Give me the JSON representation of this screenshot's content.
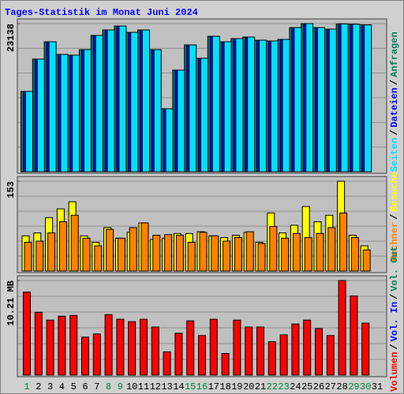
{
  "chart_data": [
    {
      "type": "bar",
      "title": "Tages-Statistik im Monat Juni 2024",
      "ylim": [
        0,
        23138
      ],
      "yticks": [
        23138
      ],
      "legend_separator": "/",
      "series": [
        {
          "name": "Seiten",
          "color": "#00e0ff",
          "values": [
            12553,
            17600,
            20307,
            18338,
            18215,
            19076,
            21292,
            22153,
            22769,
            21784,
            22153,
            19076,
            9846,
            15877,
            19815,
            17723,
            21169,
            20307,
            20800,
            21046,
            20553,
            20430,
            20676,
            22523,
            23138,
            22523,
            22276,
            23100,
            23050,
            22950,
            null
          ]
        },
        {
          "name": "Dateien",
          "color": "#0000ff",
          "values": [
            12553,
            17600,
            20307,
            18338,
            18215,
            19076,
            21292,
            22153,
            22769,
            21784,
            22153,
            19076,
            9846,
            15877,
            19815,
            17723,
            21169,
            20307,
            20800,
            21046,
            20553,
            20430,
            20676,
            22523,
            23138,
            22523,
            22276,
            23100,
            23050,
            22950,
            null
          ]
        },
        {
          "name": "Anfragen",
          "color": "#00805c",
          "values": [
            12553,
            17600,
            20307,
            18338,
            18215,
            19076,
            21292,
            22153,
            22769,
            21784,
            22153,
            19076,
            9846,
            15877,
            19815,
            17723,
            21169,
            20307,
            20800,
            21046,
            20553,
            20430,
            20676,
            22523,
            23138,
            22523,
            22276,
            23100,
            23050,
            22950,
            null
          ]
        }
      ]
    },
    {
      "type": "bar",
      "ylim": [
        0,
        153
      ],
      "yticks": [
        153
      ],
      "legend_separator": "/",
      "series": [
        {
          "name": "Rechner",
          "color": "#ff8000",
          "values": [
            49,
            51,
            65,
            84,
            95,
            56,
            43,
            71,
            56,
            74,
            82,
            61,
            62,
            61,
            49,
            66,
            60,
            51,
            57,
            67,
            47,
            76,
            56,
            64,
            57,
            64,
            74,
            99,
            57,
            36,
            null
          ]
        },
        {
          "name": "Besuche",
          "color": "#ffff00",
          "values": [
            60,
            65,
            91,
            106,
            118,
            60,
            49,
            74,
            56,
            66,
            82,
            54,
            56,
            64,
            64,
            67,
            60,
            57,
            61,
            66,
            49,
            99,
            65,
            78,
            110,
            84,
            95,
            153,
            61,
            43,
            null
          ]
        }
      ]
    },
    {
      "type": "bar",
      "ylim": [
        0,
        10.21
      ],
      "yticks": [
        {
          "value": 10.21,
          "label": "10.21 MB"
        }
      ],
      "legend_separator": "/",
      "categories": [
        "1",
        "2",
        "3",
        "4",
        "5",
        "6",
        "7",
        "8",
        "9",
        "10",
        "11",
        "12",
        "13",
        "14",
        "15",
        "16",
        "17",
        "18",
        "19",
        "20",
        "21",
        "22",
        "23",
        "24",
        "25",
        "26",
        "27",
        "28",
        "29",
        "30",
        "31"
      ],
      "category_colors": [
        "#008040",
        "#000000",
        "#000000",
        "#000000",
        "#000000",
        "#000000",
        "#000000",
        "#008040",
        "#008040",
        "#000000",
        "#000000",
        "#000000",
        "#000000",
        "#000000",
        "#008040",
        "#008040",
        "#000000",
        "#000000",
        "#000000",
        "#000000",
        "#000000",
        "#008040",
        "#008040",
        "#000000",
        "#000000",
        "#000000",
        "#000000",
        "#000000",
        "#008040",
        "#008040",
        "#000000"
      ],
      "series": [
        {
          "name": "Volumen",
          "color": "#ff0000",
          "values": [
            8.96,
            6.78,
            5.94,
            6.36,
            6.44,
            4.1,
            4.44,
            6.53,
            6.03,
            5.77,
            6.03,
            5.19,
            2.51,
            4.52,
            5.86,
            4.27,
            6.03,
            2.34,
            5.94,
            5.19,
            5.19,
            3.6,
            4.35,
            5.52,
            5.94,
            5.02,
            4.27,
            10.21,
            8.54,
            5.61,
            null
          ]
        }
      ],
      "legend_only": [
        {
          "name": "Vol. In",
          "color": "#0000ff"
        },
        {
          "name": "Vol. Out",
          "color": "#00805c"
        }
      ]
    }
  ]
}
